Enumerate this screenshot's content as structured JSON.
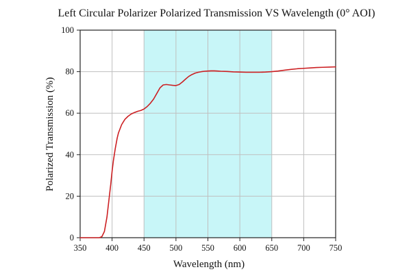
{
  "chart_data": {
    "type": "line",
    "title": "Left Circular Polarizer Polarized Transmission VS Wavelength (0° AOI)",
    "xlabel": "Wavelength (nm)",
    "ylabel": "Polarized Transmission (%)",
    "xlim": [
      350,
      750
    ],
    "ylim": [
      0,
      100
    ],
    "x_ticks": [
      350,
      400,
      450,
      500,
      550,
      600,
      650,
      700,
      750
    ],
    "y_ticks": [
      0,
      20,
      40,
      60,
      80,
      100
    ],
    "grid": true,
    "legend": "none",
    "highlight_band": {
      "x_range": [
        450,
        650
      ],
      "color": "#c8f6f8"
    },
    "colors": {
      "line": "#cc1f22",
      "grid": "#bfbfbf",
      "axis": "#222222"
    },
    "series": [
      {
        "x": [
          350,
          370,
          380,
          384,
          388,
          392,
          395,
          398,
          400,
          402,
          405,
          408,
          410,
          415,
          420,
          425,
          430,
          435,
          440,
          445,
          450,
          455,
          460,
          465,
          470,
          475,
          480,
          485,
          490,
          495,
          500,
          505,
          510,
          515,
          520,
          525,
          530,
          535,
          540,
          545,
          550,
          555,
          560,
          565,
          570,
          580,
          590,
          600,
          610,
          620,
          630,
          640,
          650,
          660,
          670,
          680,
          690,
          700,
          710,
          720,
          730,
          740,
          750
        ],
        "y": [
          0,
          0,
          0,
          0.5,
          3,
          10,
          18,
          26,
          32,
          37,
          43,
          48,
          50.5,
          54.5,
          57,
          58.5,
          59.6,
          60.3,
          60.9,
          61.3,
          62,
          63.2,
          64.8,
          66.8,
          69.5,
          72.2,
          73.6,
          73.8,
          73.6,
          73.4,
          73.3,
          73.8,
          75,
          76.4,
          77.7,
          78.6,
          79.3,
          79.7,
          80,
          80.2,
          80.3,
          80.4,
          80.4,
          80.3,
          80.2,
          80.1,
          79.9,
          79.8,
          79.7,
          79.7,
          79.7,
          79.8,
          80,
          80.3,
          80.7,
          81.1,
          81.4,
          81.6,
          81.8,
          82,
          82.1,
          82.2,
          82.3
        ]
      }
    ]
  }
}
